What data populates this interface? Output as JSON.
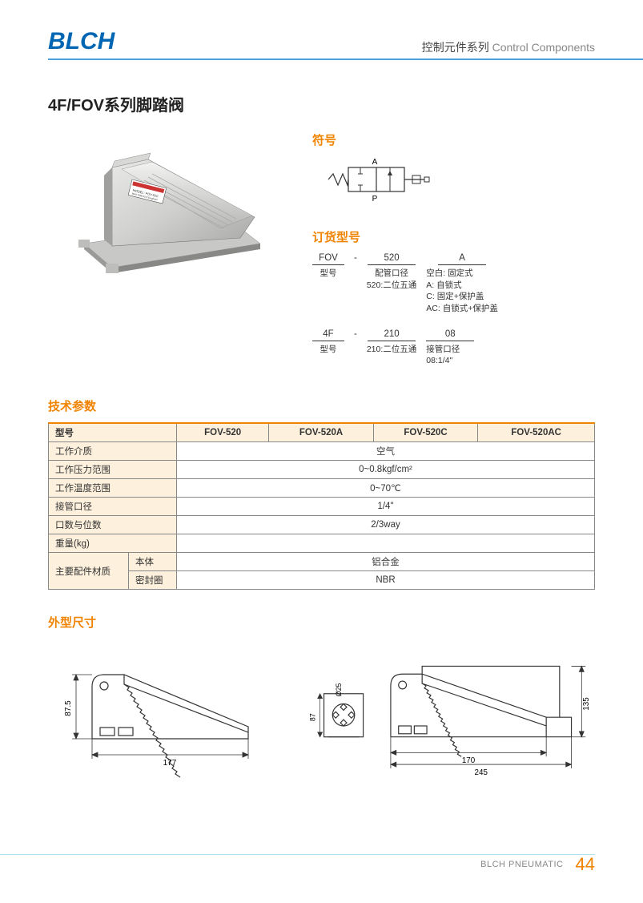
{
  "header": {
    "logo": "BLCH",
    "category_cn": "控制元件系列",
    "category_en": "Control Components"
  },
  "title": "4F/FOV系列脚踏阀",
  "section_symbol": "符号",
  "symbol": {
    "port_a": "A",
    "port_p": "P"
  },
  "section_order": "订货型号",
  "order1": {
    "col1": {
      "hd": "FOV",
      "sub": "型号"
    },
    "col2": {
      "hd": "520",
      "sub": "配管口径\n520:二位五通"
    },
    "col3": {
      "hd": "A",
      "sub": "空白: 固定式\nA: 自锁式\nC: 固定+保护盖\nAC: 自锁式+保护盖"
    }
  },
  "order2": {
    "col1": {
      "hd": "4F",
      "sub": "型号"
    },
    "col2": {
      "hd": "210",
      "sub": "210:二位五通"
    },
    "col3": {
      "hd": "08",
      "sub": "接管口径\n08:1/4\""
    }
  },
  "section_spec": "技术参数",
  "spec": {
    "head": [
      "型号",
      "FOV-520",
      "FOV-520A",
      "FOV-520C",
      "FOV-520AC"
    ],
    "rows": [
      {
        "label": "工作介质",
        "value": "空气"
      },
      {
        "label": "工作压力范围",
        "value": "0~0.8kgf/cm²"
      },
      {
        "label": "工作温度范围",
        "value": "0~70℃"
      },
      {
        "label": "接管口径",
        "value": "1/4\""
      },
      {
        "label": "口数与位数",
        "value": "2/3way"
      },
      {
        "label": "重量(kg)",
        "value": ""
      }
    ],
    "material_label": "主要配件材质",
    "material_rows": [
      {
        "label": "本体",
        "value": "铝合金"
      },
      {
        "label": "密封圈",
        "value": "NBR"
      }
    ]
  },
  "section_dim": "外型尺寸",
  "dims_left": {
    "w": "177",
    "h": "87.5",
    "d": "Ø25"
  },
  "dims_right": {
    "w1": "170",
    "w2": "245",
    "h1": "87",
    "h2": "135"
  },
  "footer": {
    "brand": "BLCH PNEUMATIC",
    "page": "44"
  },
  "colors": {
    "blue": "#0066b3",
    "lightblue": "#4aa3df",
    "orange": "#f08300",
    "table_head_bg": "#fdf0dc",
    "border": "#888888",
    "text": "#333333"
  }
}
